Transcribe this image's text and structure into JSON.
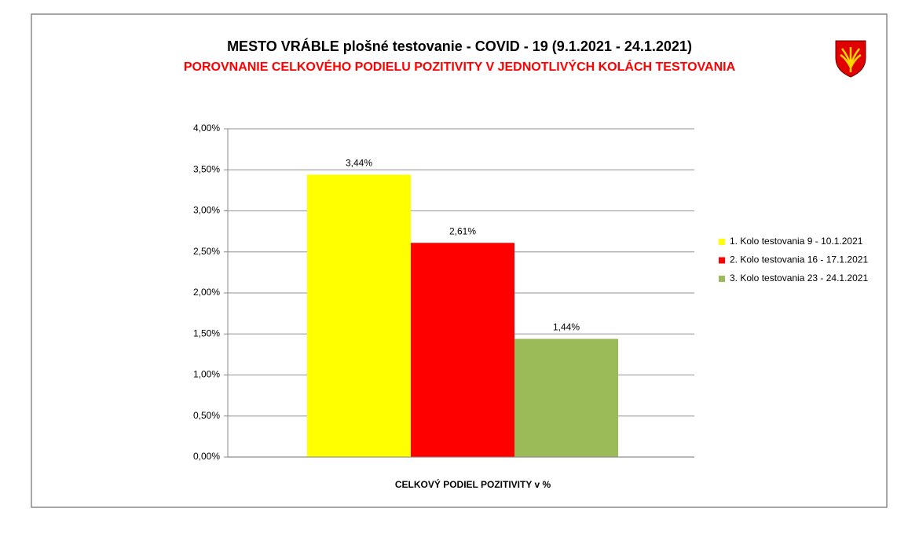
{
  "chart_data": {
    "type": "bar",
    "title": "MESTO VRÁBLE plošné testovanie - COVID - 19 (9.1.2021 - 24.1.2021)",
    "subtitle": "POROVNANIE CELKOVÉHO PODIELU POZITIVITY V JEDNOTLIVÝCH KOLÁCH TESTOVANIA",
    "categories": [
      "CELKOVÝ PODIEL POZITIVITY v %"
    ],
    "series": [
      {
        "name": "1. Kolo testovania 9 - 10.1.2021",
        "color": "#ffff00",
        "values": [
          3.44
        ],
        "value_labels": [
          "3,44%"
        ]
      },
      {
        "name": "2. Kolo testovania 16 - 17.1.2021",
        "color": "#ff0000",
        "values": [
          2.61
        ],
        "value_labels": [
          "2,61%"
        ]
      },
      {
        "name": "3. Kolo testovania 23 - 24.1.2021",
        "color": "#9bbb59",
        "values": [
          1.44
        ],
        "value_labels": [
          "1,44%"
        ]
      }
    ],
    "ylim": [
      0,
      4
    ],
    "yticks": [
      {
        "value": 0,
        "label": "0,00%"
      },
      {
        "value": 0.5,
        "label": "0,50%"
      },
      {
        "value": 1,
        "label": "1,00%"
      },
      {
        "value": 1.5,
        "label": "1,50%"
      },
      {
        "value": 2,
        "label": "2,00%"
      },
      {
        "value": 2.5,
        "label": "2,50%"
      },
      {
        "value": 3,
        "label": "3,00%"
      },
      {
        "value": 3.5,
        "label": "3,50%"
      },
      {
        "value": 4,
        "label": "4,00%"
      }
    ],
    "grid": true,
    "legend": "right"
  }
}
